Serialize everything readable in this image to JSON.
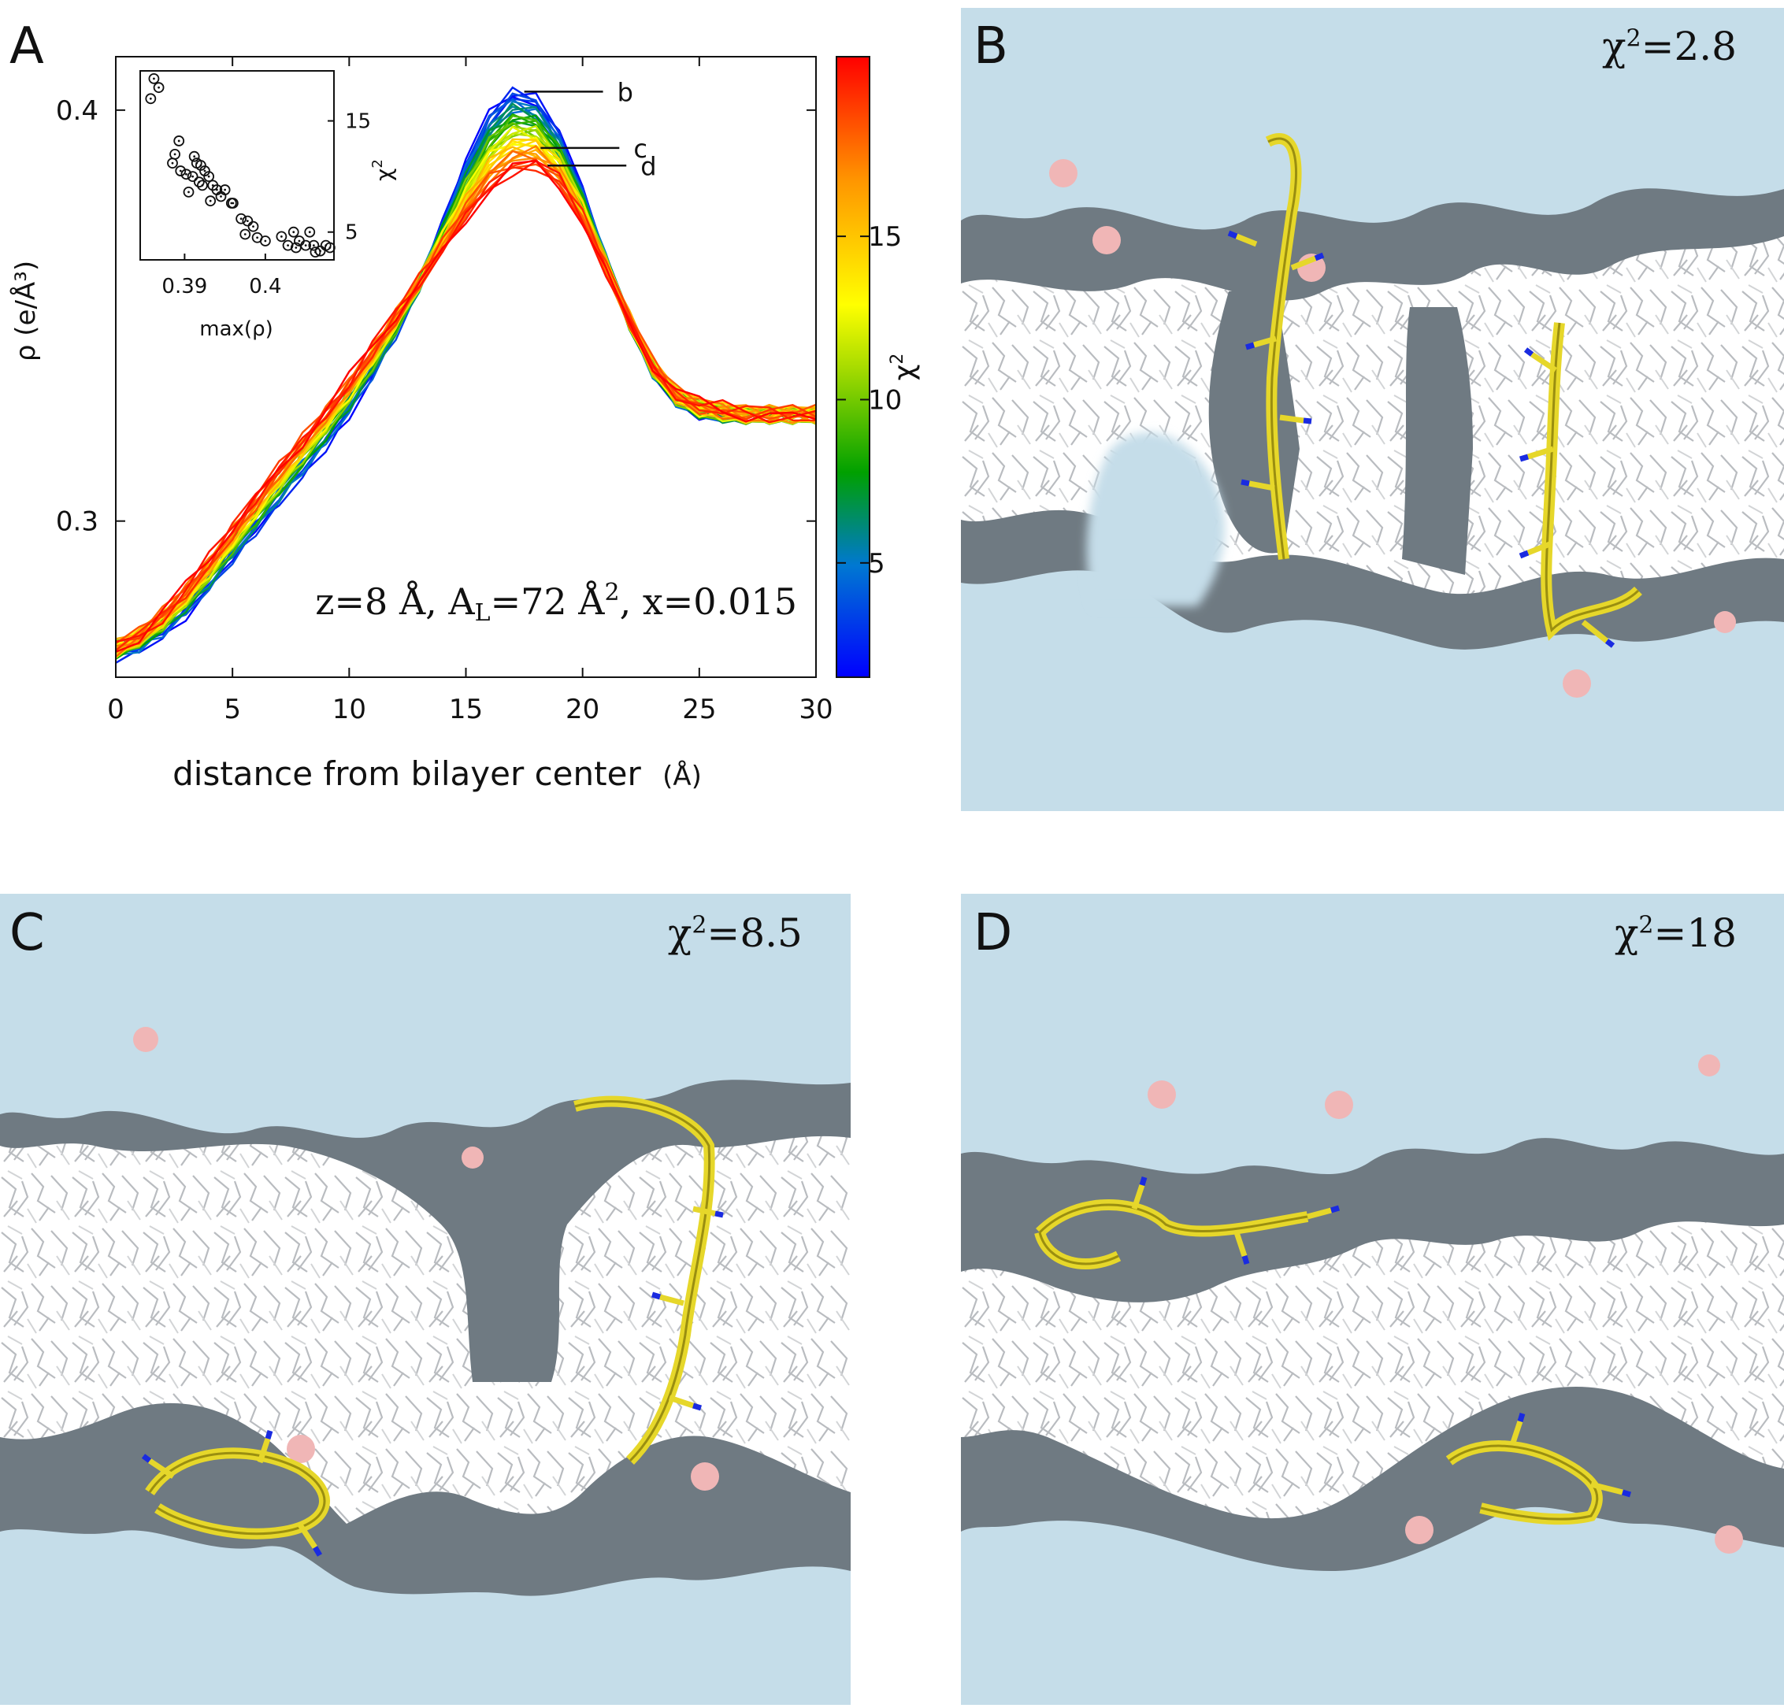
{
  "panels": {
    "A": {
      "letter": "A"
    },
    "B": {
      "letter": "B",
      "chi_label": "χ²=2.8",
      "chi_value": "2.8"
    },
    "C": {
      "letter": "C",
      "chi_label": "χ²=8.5",
      "chi_value": "8.5"
    },
    "D": {
      "letter": "D",
      "chi_label": "χ²=18",
      "chi_value": "18"
    }
  },
  "chart_data": [
    {
      "type": "line",
      "title": "",
      "xlabel": "distance from bilayer center",
      "xlabel_unit": "(Å)",
      "ylabel": "ρ (e/Å³)",
      "xlim": [
        0,
        30
      ],
      "ylim": [
        0.262,
        0.413
      ],
      "xticks": [
        0,
        5,
        10,
        15,
        20,
        25,
        30
      ],
      "yticks": [
        0.3,
        0.4
      ],
      "annotation": "z=8 Å, A_L=72 Å², x=0.015",
      "colorbar": {
        "label": "χ²",
        "range": [
          1.5,
          20.5
        ],
        "ticks": [
          5,
          10,
          15
        ]
      },
      "markers": [
        {
          "label": "b",
          "x": 17.5,
          "y": 0.4045
        },
        {
          "label": "c",
          "x": 18.2,
          "y": 0.3908
        },
        {
          "label": "d",
          "x": 18.5,
          "y": 0.3865
        }
      ],
      "base_curve": {
        "x": [
          0,
          1,
          2,
          3,
          4,
          5,
          6,
          7,
          8,
          9,
          10,
          11,
          12,
          13,
          14,
          15,
          16,
          17,
          18,
          19,
          20,
          21,
          22,
          23,
          24,
          25,
          26,
          27,
          28,
          29,
          30
        ],
        "y_low_chi2": [
          0.2675,
          0.2695,
          0.273,
          0.278,
          0.284,
          0.291,
          0.298,
          0.305,
          0.312,
          0.319,
          0.327,
          0.336,
          0.346,
          0.358,
          0.372,
          0.387,
          0.399,
          0.405,
          0.403,
          0.394,
          0.38,
          0.364,
          0.349,
          0.337,
          0.33,
          0.327,
          0.326,
          0.326,
          0.326,
          0.326,
          0.326
        ],
        "y_high_chi2": [
          0.2695,
          0.2725,
          0.2775,
          0.2835,
          0.2905,
          0.298,
          0.3055,
          0.313,
          0.32,
          0.327,
          0.334,
          0.342,
          0.35,
          0.358,
          0.366,
          0.374,
          0.381,
          0.385,
          0.386,
          0.382,
          0.373,
          0.361,
          0.349,
          0.338,
          0.331,
          0.328,
          0.327,
          0.326,
          0.326,
          0.326,
          0.326
        ]
      },
      "series_count": 38
    },
    {
      "type": "scatter",
      "title": "",
      "xlabel": "max(ρ)",
      "ylabel": "χ²",
      "xlim": [
        0.3845,
        0.4085
      ],
      "ylim": [
        2.5,
        19.5
      ],
      "xticks": [
        0.39,
        0.4
      ],
      "yticks": [
        5,
        15
      ],
      "points": {
        "x": [
          0.3862,
          0.3868,
          0.3858,
          0.3893,
          0.3888,
          0.3912,
          0.3885,
          0.3915,
          0.392,
          0.3895,
          0.3902,
          0.391,
          0.3925,
          0.393,
          0.3918,
          0.3935,
          0.3922,
          0.394,
          0.3905,
          0.3945,
          0.395,
          0.3932,
          0.396,
          0.3958,
          0.397,
          0.3978,
          0.3985,
          0.3975,
          0.399,
          0.4,
          0.402,
          0.4035,
          0.4042,
          0.4028,
          0.405,
          0.4055,
          0.406,
          0.4038,
          0.4062,
          0.4075,
          0.408,
          0.4068
        ],
        "y": [
          18.8,
          18.0,
          17.0,
          13.2,
          12.0,
          11.8,
          11.2,
          11.2,
          11.0,
          10.5,
          10.2,
          10.0,
          10.5,
          10.0,
          9.5,
          9.2,
          9.2,
          8.8,
          8.6,
          8.2,
          8.8,
          7.8,
          7.6,
          7.6,
          6.2,
          6.0,
          5.5,
          4.8,
          4.5,
          4.2,
          4.6,
          5.0,
          4.2,
          3.8,
          3.8,
          5.0,
          3.8,
          3.6,
          3.2,
          3.8,
          3.6,
          3.3
        ]
      }
    }
  ]
}
